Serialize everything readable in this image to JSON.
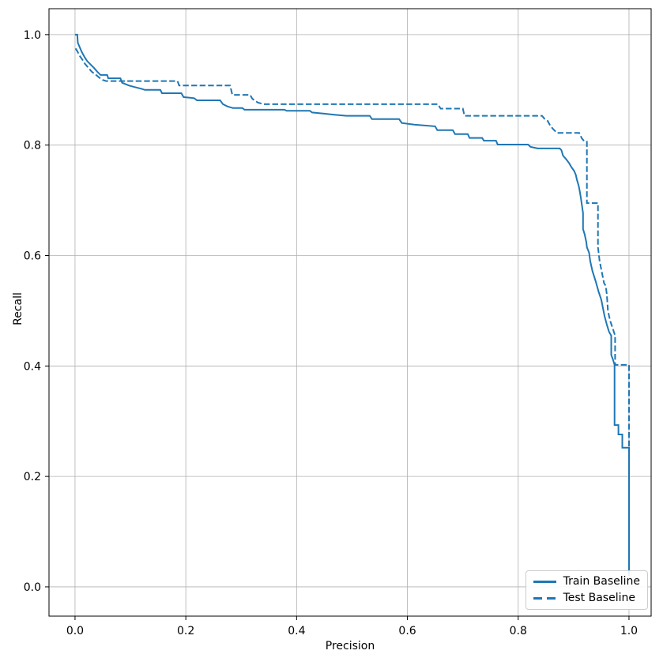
{
  "chart_data": {
    "type": "line",
    "title": "",
    "xlabel": "Precision",
    "ylabel": "Recall",
    "xlim": [
      -0.047,
      1.04
    ],
    "ylim": [
      -0.053,
      1.047
    ],
    "grid": true,
    "grid_color": "#b0b0b0",
    "accent_color": "#1f77b4",
    "xticks": {
      "values": [
        0.0,
        0.2,
        0.4,
        0.6,
        0.8,
        1.0
      ],
      "labels": [
        "0.0",
        "0.2",
        "0.4",
        "0.6",
        "0.8",
        "1.0"
      ]
    },
    "yticks": {
      "values": [
        0.0,
        0.2,
        0.4,
        0.6,
        0.8,
        1.0
      ],
      "labels": [
        "0.0",
        "0.2",
        "0.4",
        "0.6",
        "0.8",
        "1.0"
      ]
    },
    "legend": {
      "position": "lower right"
    },
    "series": [
      {
        "name": "Train Baseline",
        "style": "solid",
        "color": "#1f77b4",
        "points": [
          [
            0.0,
            1.0
          ],
          [
            0.004,
            1.0
          ],
          [
            0.005,
            0.985
          ],
          [
            0.008,
            0.978
          ],
          [
            0.011,
            0.971
          ],
          [
            0.014,
            0.965
          ],
          [
            0.018,
            0.958
          ],
          [
            0.022,
            0.952
          ],
          [
            0.027,
            0.947
          ],
          [
            0.034,
            0.94
          ],
          [
            0.04,
            0.933
          ],
          [
            0.046,
            0.927
          ],
          [
            0.058,
            0.927
          ],
          [
            0.06,
            0.921
          ],
          [
            0.082,
            0.921
          ],
          [
            0.085,
            0.913
          ],
          [
            0.097,
            0.908
          ],
          [
            0.108,
            0.905
          ],
          [
            0.12,
            0.902
          ],
          [
            0.126,
            0.9
          ],
          [
            0.154,
            0.9
          ],
          [
            0.157,
            0.894
          ],
          [
            0.192,
            0.894
          ],
          [
            0.196,
            0.887
          ],
          [
            0.215,
            0.885
          ],
          [
            0.22,
            0.881
          ],
          [
            0.262,
            0.881
          ],
          [
            0.267,
            0.874
          ],
          [
            0.275,
            0.87
          ],
          [
            0.285,
            0.867
          ],
          [
            0.302,
            0.867
          ],
          [
            0.306,
            0.864
          ],
          [
            0.378,
            0.864
          ],
          [
            0.382,
            0.862
          ],
          [
            0.424,
            0.862
          ],
          [
            0.428,
            0.859
          ],
          [
            0.448,
            0.857
          ],
          [
            0.468,
            0.855
          ],
          [
            0.49,
            0.853
          ],
          [
            0.532,
            0.853
          ],
          [
            0.536,
            0.847
          ],
          [
            0.585,
            0.847
          ],
          [
            0.59,
            0.84
          ],
          [
            0.612,
            0.837
          ],
          [
            0.65,
            0.834
          ],
          [
            0.654,
            0.827
          ],
          [
            0.682,
            0.827
          ],
          [
            0.686,
            0.82
          ],
          [
            0.709,
            0.82
          ],
          [
            0.712,
            0.813
          ],
          [
            0.735,
            0.813
          ],
          [
            0.738,
            0.808
          ],
          [
            0.76,
            0.808
          ],
          [
            0.763,
            0.801
          ],
          [
            0.818,
            0.801
          ],
          [
            0.822,
            0.797
          ],
          [
            0.835,
            0.794
          ],
          [
            0.875,
            0.794
          ],
          [
            0.878,
            0.791
          ],
          [
            0.881,
            0.781
          ],
          [
            0.887,
            0.774
          ],
          [
            0.892,
            0.767
          ],
          [
            0.896,
            0.76
          ],
          [
            0.901,
            0.753
          ],
          [
            0.904,
            0.746
          ],
          [
            0.906,
            0.737
          ],
          [
            0.909,
            0.727
          ],
          [
            0.911,
            0.717
          ],
          [
            0.913,
            0.705
          ],
          [
            0.915,
            0.691
          ],
          [
            0.917,
            0.677
          ],
          [
            0.917,
            0.648
          ],
          [
            0.92,
            0.638
          ],
          [
            0.923,
            0.624
          ],
          [
            0.924,
            0.615
          ],
          [
            0.928,
            0.605
          ],
          [
            0.93,
            0.59
          ],
          [
            0.934,
            0.572
          ],
          [
            0.94,
            0.553
          ],
          [
            0.945,
            0.535
          ],
          [
            0.95,
            0.52
          ],
          [
            0.953,
            0.505
          ],
          [
            0.956,
            0.49
          ],
          [
            0.96,
            0.475
          ],
          [
            0.964,
            0.462
          ],
          [
            0.968,
            0.455
          ],
          [
            0.968,
            0.42
          ],
          [
            0.971,
            0.412
          ],
          [
            0.974,
            0.402
          ],
          [
            0.974,
            0.293
          ],
          [
            0.981,
            0.293
          ],
          [
            0.981,
            0.276
          ],
          [
            0.988,
            0.276
          ],
          [
            0.988,
            0.252
          ],
          [
            1.0,
            0.252
          ],
          [
            1.0,
            0.023
          ]
        ]
      },
      {
        "name": "Test Baseline",
        "style": "dashed",
        "color": "#1f77b4",
        "points": [
          [
            0.001,
            0.975
          ],
          [
            0.004,
            0.97
          ],
          [
            0.008,
            0.962
          ],
          [
            0.013,
            0.955
          ],
          [
            0.018,
            0.947
          ],
          [
            0.024,
            0.94
          ],
          [
            0.03,
            0.933
          ],
          [
            0.038,
            0.927
          ],
          [
            0.044,
            0.922
          ],
          [
            0.05,
            0.918
          ],
          [
            0.056,
            0.916
          ],
          [
            0.185,
            0.916
          ],
          [
            0.188,
            0.908
          ],
          [
            0.28,
            0.908
          ],
          [
            0.284,
            0.891
          ],
          [
            0.316,
            0.891
          ],
          [
            0.32,
            0.884
          ],
          [
            0.33,
            0.877
          ],
          [
            0.34,
            0.874
          ],
          [
            0.655,
            0.874
          ],
          [
            0.66,
            0.866
          ],
          [
            0.7,
            0.866
          ],
          [
            0.703,
            0.853
          ],
          [
            0.843,
            0.853
          ],
          [
            0.848,
            0.847
          ],
          [
            0.853,
            0.844
          ],
          [
            0.858,
            0.835
          ],
          [
            0.864,
            0.828
          ],
          [
            0.87,
            0.822
          ],
          [
            0.91,
            0.822
          ],
          [
            0.915,
            0.812
          ],
          [
            0.92,
            0.806
          ],
          [
            0.924,
            0.806
          ],
          [
            0.924,
            0.695
          ],
          [
            0.944,
            0.695
          ],
          [
            0.944,
            0.615
          ],
          [
            0.947,
            0.59
          ],
          [
            0.951,
            0.57
          ],
          [
            0.955,
            0.55
          ],
          [
            0.958,
            0.545
          ],
          [
            0.96,
            0.53
          ],
          [
            0.962,
            0.5
          ],
          [
            0.966,
            0.482
          ],
          [
            0.97,
            0.47
          ],
          [
            0.975,
            0.455
          ],
          [
            0.975,
            0.402
          ],
          [
            1.0,
            0.402
          ],
          [
            1.0,
            0.02
          ]
        ]
      }
    ]
  }
}
